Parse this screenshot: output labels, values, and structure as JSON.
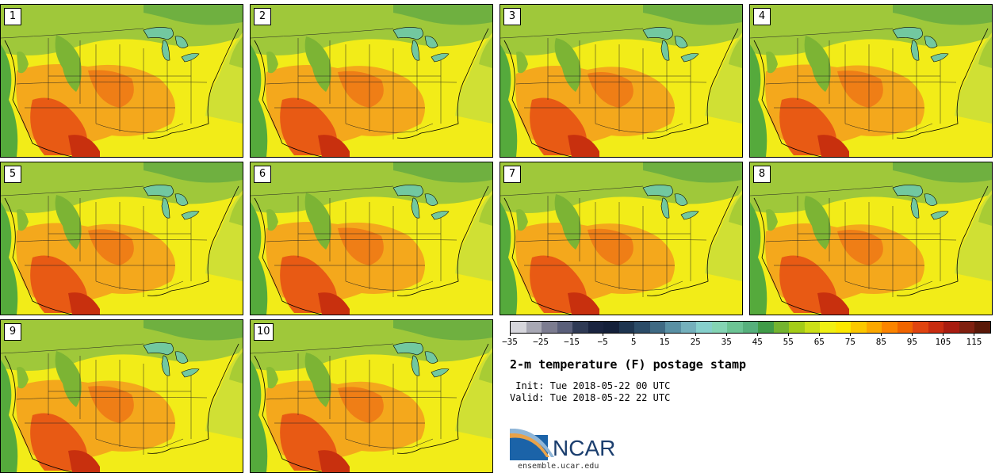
{
  "figure": {
    "title": "2-m temperature (F) postage stamp",
    "init_text": " Init: Tue 2018-05-22 00 UTC",
    "valid_text": "Valid: Tue 2018-05-22 22 UTC",
    "logo_text": "NCAR",
    "website": "ensemble.ucar.edu"
  },
  "panels": [
    {
      "label": "1"
    },
    {
      "label": "2"
    },
    {
      "label": "3"
    },
    {
      "label": "4"
    },
    {
      "label": "5"
    },
    {
      "label": "6"
    },
    {
      "label": "7"
    },
    {
      "label": "8"
    },
    {
      "label": "9"
    },
    {
      "label": "10"
    }
  ],
  "colorbar": {
    "colors": [
      "#d6d6dc",
      "#a8a8b4",
      "#7c7c90",
      "#5a5f7a",
      "#2f3a55",
      "#1a2440",
      "#14203a",
      "#1e3550",
      "#2c4c68",
      "#3f6a84",
      "#5990a4",
      "#74b0bc",
      "#86d0cc",
      "#84d4b4",
      "#6cc494",
      "#56b07c",
      "#409c48",
      "#74b430",
      "#a4cc18",
      "#cce018",
      "#f0f014",
      "#fce800",
      "#fcc800",
      "#fca800",
      "#fc8400",
      "#f06400",
      "#e04410",
      "#c82c10",
      "#a81c10",
      "#802010",
      "#5a1808"
    ],
    "tick_labels": [
      "−35",
      "−25",
      "−15",
      "−5",
      "5",
      "15",
      "25",
      "35",
      "45",
      "55",
      "65",
      "75",
      "85",
      "95",
      "105",
      "115"
    ]
  },
  "icons": {
    "logo": "ncar-logo-swoosh"
  }
}
